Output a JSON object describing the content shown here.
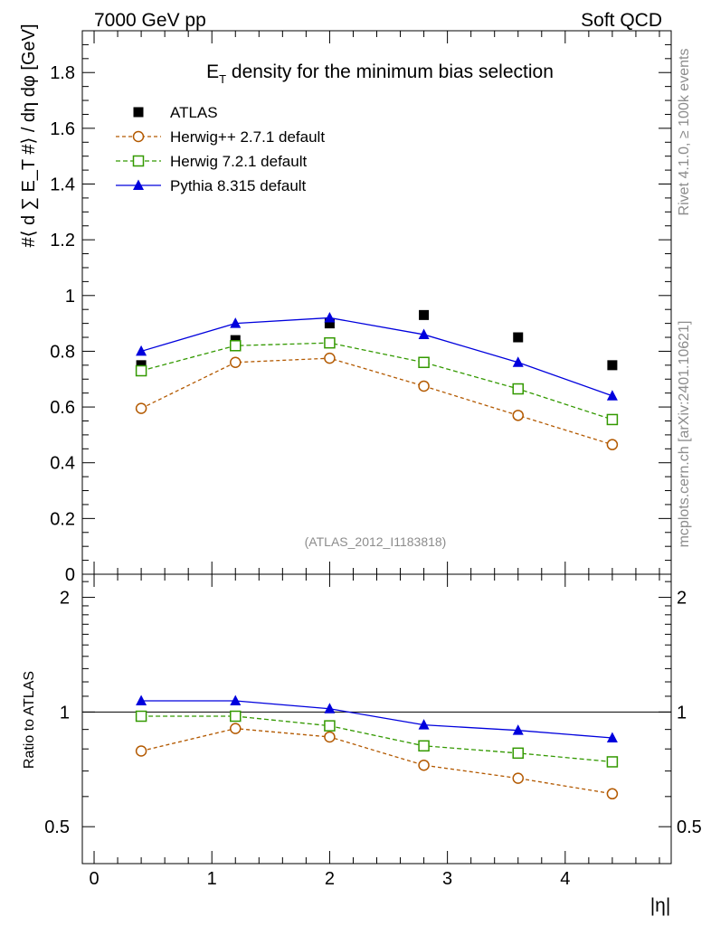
{
  "header": {
    "left": "7000 GeV pp",
    "right": "Soft QCD"
  },
  "side_labels": {
    "rivet": "Rivet 4.1.0, ≥ 100k events",
    "mcplots": "mcplots.cern.ch [arXiv:2401.10621]"
  },
  "colors": {
    "atlas": "#000000",
    "herwig_pp": "#b35900",
    "herwig7": "#339900",
    "pythia": "#0000dd"
  },
  "chart_data": [
    {
      "type": "scatter",
      "panel": "main",
      "title_main": "E",
      "title_sub": "T",
      "title_rest": " density  for the minimum bias selection",
      "ylabel": "#⟨ d ∑ E_T #⟩ / dη dφ [GeV]",
      "xlabel": "|η|",
      "ylim": [
        0,
        1.95
      ],
      "xlim": [
        -0.1,
        4.9
      ],
      "yticks": [
        "0",
        "0.2",
        "0.4",
        "0.6",
        "0.8",
        "1",
        "1.2",
        "1.4",
        "1.6",
        "1.8"
      ],
      "ytick_values": [
        0,
        0.2,
        0.4,
        0.6,
        0.8,
        1.0,
        1.2,
        1.4,
        1.6,
        1.8
      ],
      "watermark": "(ATLAS_2012_I1183818)",
      "x": [
        0.4,
        1.2,
        2.0,
        2.8,
        3.6,
        4.4
      ],
      "series": [
        {
          "name": "ATLAS",
          "key": "atlas",
          "style": "data",
          "values": [
            0.75,
            0.84,
            0.9,
            0.93,
            0.85,
            0.75
          ]
        },
        {
          "name": "Herwig++ 2.7.1 default",
          "key": "herwig_pp",
          "style": "circle",
          "values": [
            0.595,
            0.76,
            0.775,
            0.675,
            0.57,
            0.465
          ]
        },
        {
          "name": "Herwig 7.2.1 default",
          "key": "herwig7",
          "style": "square",
          "values": [
            0.73,
            0.82,
            0.83,
            0.76,
            0.665,
            0.555
          ]
        },
        {
          "name": "Pythia 8.315 default",
          "key": "pythia",
          "style": "triangle",
          "values": [
            0.8,
            0.9,
            0.92,
            0.86,
            0.76,
            0.64
          ]
        }
      ]
    },
    {
      "type": "line",
      "panel": "ratio",
      "ylabel": "Ratio to ATLAS",
      "xlabel": "|η|",
      "scale": "log",
      "ylim": [
        0.4,
        2.3
      ],
      "yticks": [
        "0.5",
        "1",
        "2"
      ],
      "ytick_values": [
        0.5,
        1,
        2
      ],
      "xticks": [
        "0",
        "1",
        "2",
        "3",
        "4"
      ],
      "xtick_values": [
        0,
        1,
        2,
        3,
        4
      ],
      "x": [
        0.4,
        1.2,
        2.0,
        2.8,
        3.6,
        4.4
      ],
      "series": [
        {
          "name": "Herwig++ 2.7.1 default",
          "key": "herwig_pp",
          "style": "circle",
          "values": [
            0.79,
            0.905,
            0.86,
            0.725,
            0.67,
            0.61
          ]
        },
        {
          "name": "Herwig 7.2.1 default",
          "key": "herwig7",
          "style": "square",
          "values": [
            0.975,
            0.975,
            0.92,
            0.815,
            0.78,
            0.74
          ]
        },
        {
          "name": "Pythia 8.315 default",
          "key": "pythia",
          "style": "triangle",
          "values": [
            1.07,
            1.07,
            1.02,
            0.925,
            0.895,
            0.855
          ]
        }
      ]
    }
  ]
}
